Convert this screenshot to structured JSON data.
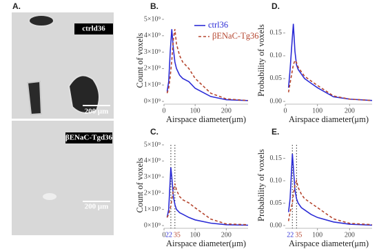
{
  "panel_a": {
    "label": "A.",
    "images": [
      {
        "caption": "ctrld36",
        "scale": "200 μm"
      },
      {
        "caption": "βENaC-Tgd36",
        "scale": "200 μm"
      }
    ]
  },
  "chart_data": [
    {
      "type": "line",
      "panel": "B.",
      "ylabel": "Count of voxels",
      "xlabel": "Airspace diameter(μm)",
      "legend": "upper right",
      "x": [
        10,
        15,
        20,
        25,
        30,
        35,
        40,
        50,
        60,
        80,
        100,
        150,
        200,
        270
      ],
      "series": [
        {
          "name": "ctrl36",
          "color": "#2b2bd6",
          "dash": false,
          "values": [
            600000000.0,
            1200000000.0,
            3000000000.0,
            4400000000.0,
            3200000000.0,
            2400000000.0,
            2000000000.0,
            1600000000.0,
            1400000000.0,
            1200000000.0,
            800000000.0,
            300000000.0,
            100000000.0,
            50000000.0
          ]
        },
        {
          "name": "βENaC-Tg36",
          "color": "#b5452e",
          "dash": true,
          "values": [
            500000000.0,
            800000000.0,
            1500000000.0,
            2500000000.0,
            3800000000.0,
            4400000000.0,
            3500000000.0,
            2800000000.0,
            2400000000.0,
            2000000000.0,
            1400000000.0,
            500000000.0,
            150000000.0,
            50000000.0
          ]
        }
      ],
      "xlim": [
        0,
        270
      ],
      "ylim": [
        0,
        5000000000.0
      ],
      "xticks": [
        0,
        100,
        200
      ],
      "yticks": [
        {
          "value": 0,
          "label": "0×10⁹"
        },
        {
          "value": 1000000000.0,
          "label": "1×10⁹"
        },
        {
          "value": 2000000000.0,
          "label": "2×10⁹"
        },
        {
          "value": 3000000000.0,
          "label": "3×10⁹"
        },
        {
          "value": 4000000000.0,
          "label": "4×10⁹"
        },
        {
          "value": 5000000000.0,
          "label": "5×10⁹"
        }
      ]
    },
    {
      "type": "line",
      "panel": "D.",
      "ylabel": "Probability of voxels",
      "xlabel": "Airspace diameter(μm)",
      "x": [
        10,
        15,
        20,
        25,
        30,
        35,
        40,
        50,
        60,
        80,
        100,
        150,
        200,
        270
      ],
      "series": [
        {
          "name": "ctrl36",
          "color": "#2b2bd6",
          "dash": false,
          "values": [
            0.03,
            0.07,
            0.12,
            0.17,
            0.11,
            0.08,
            0.07,
            0.06,
            0.05,
            0.04,
            0.03,
            0.01,
            0.005,
            0.002
          ]
        },
        {
          "name": "βENaC-Tg36",
          "color": "#b5452e",
          "dash": true,
          "values": [
            0.02,
            0.04,
            0.06,
            0.08,
            0.09,
            0.085,
            0.075,
            0.065,
            0.055,
            0.045,
            0.035,
            0.012,
            0.005,
            0.002
          ]
        }
      ],
      "xlim": [
        0,
        270
      ],
      "ylim": [
        0,
        0.18
      ],
      "xticks": [
        0,
        100,
        200
      ],
      "yticks": [
        {
          "value": 0,
          "label": "0.00"
        },
        0.05,
        {
          "value": 0.1,
          "label": "0.10"
        },
        0.15
      ]
    },
    {
      "type": "line",
      "panel": "C.",
      "ylabel": "Count of voxels",
      "xlabel": "Airspace diameter(μm)",
      "x": [
        10,
        15,
        22,
        25,
        30,
        35,
        40,
        50,
        60,
        80,
        100,
        150,
        200,
        270
      ],
      "series": [
        {
          "name": "ctrl36",
          "color": "#2b2bd6",
          "dash": false,
          "values": [
            500000000.0,
            1000000000.0,
            3600000000.0,
            3000000000.0,
            1800000000.0,
            1300000000.0,
            1000000000.0,
            800000000.0,
            700000000.0,
            500000000.0,
            350000000.0,
            150000000.0,
            50000000.0,
            20000000.0
          ]
        },
        {
          "name": "βENaC-Tg36",
          "color": "#b5452e",
          "dash": true,
          "values": [
            500000000.0,
            700000000.0,
            1200000000.0,
            1600000000.0,
            2200000000.0,
            2600000000.0,
            2200000000.0,
            1800000000.0,
            1600000000.0,
            1400000000.0,
            1100000000.0,
            400000000.0,
            100000000.0,
            50000000.0
          ]
        }
      ],
      "vlines": [
        22,
        35
      ],
      "xlim": [
        0,
        270
      ],
      "ylim": [
        0,
        5000000000.0
      ],
      "xticks": [
        0,
        100,
        200
      ],
      "yticks": [
        {
          "value": 0,
          "label": "0×10⁹"
        },
        {
          "value": 1000000000.0,
          "label": "1×10⁹"
        },
        {
          "value": 2000000000.0,
          "label": "2×10⁹"
        },
        {
          "value": 3000000000.0,
          "label": "3×10⁹"
        },
        {
          "value": 4000000000.0,
          "label": "4×10⁹"
        },
        {
          "value": 5000000000.0,
          "label": "5×10⁹"
        }
      ]
    },
    {
      "type": "line",
      "panel": "E.",
      "ylabel": "Probability of voxels",
      "xlabel": "Airspace diameter(μm)",
      "x": [
        10,
        15,
        22,
        25,
        30,
        35,
        40,
        50,
        60,
        80,
        100,
        150,
        200,
        270
      ],
      "series": [
        {
          "name": "ctrl36",
          "color": "#2b2bd6",
          "dash": false,
          "values": [
            0.03,
            0.06,
            0.16,
            0.13,
            0.08,
            0.06,
            0.05,
            0.04,
            0.035,
            0.025,
            0.018,
            0.008,
            0.003,
            0.001
          ]
        },
        {
          "name": "βENaC-Tg36",
          "color": "#b5452e",
          "dash": true,
          "values": [
            0.01,
            0.03,
            0.05,
            0.07,
            0.09,
            0.1,
            0.085,
            0.07,
            0.06,
            0.05,
            0.04,
            0.015,
            0.005,
            0.002
          ]
        }
      ],
      "vlines": [
        22,
        35
      ],
      "xlim": [
        0,
        270
      ],
      "ylim": [
        0,
        0.18
      ],
      "xticks": [
        100,
        200
      ],
      "yticks": [
        {
          "value": 0,
          "label": "0.00"
        },
        0.05,
        {
          "value": 0.1,
          "label": "0.10"
        },
        0.15
      ]
    }
  ]
}
